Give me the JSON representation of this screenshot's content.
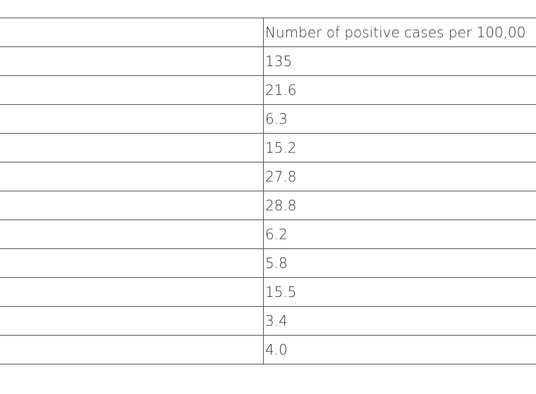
{
  "table": {
    "header": "Number of positive cases per 100,00",
    "rows": [
      "135",
      "21.6",
      "6.3",
      "15.2",
      "27.8",
      "28.8",
      "6.2",
      "5.8",
      "15.5",
      "3.4",
      "4.0"
    ]
  }
}
